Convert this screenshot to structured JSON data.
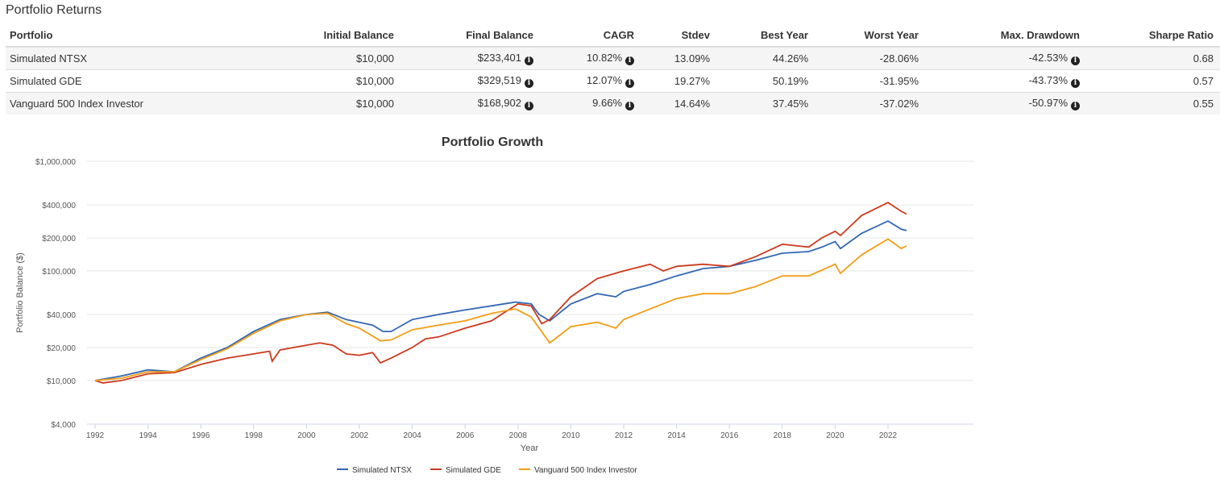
{
  "section_title": "Portfolio Returns",
  "table": {
    "headers": [
      "Portfolio",
      "Initial Balance",
      "Final Balance",
      "CAGR",
      "Stdev",
      "Best Year",
      "Worst Year",
      "Max. Drawdown",
      "Sharpe Ratio"
    ],
    "rows": [
      {
        "portfolio": "Simulated NTSX",
        "initial": "$10,000",
        "final": "$233,401",
        "cagr": "10.82%",
        "stdev": "13.09%",
        "best": "44.26%",
        "worst": "-28.06%",
        "maxdd": "-42.53%",
        "sharpe": "0.68"
      },
      {
        "portfolio": "Simulated GDE",
        "initial": "$10,000",
        "final": "$329,519",
        "cagr": "12.07%",
        "stdev": "19.27%",
        "best": "50.19%",
        "worst": "-31.95%",
        "maxdd": "-43.73%",
        "sharpe": "0.57"
      },
      {
        "portfolio": "Vanguard 500 Index Investor",
        "initial": "$10,000",
        "final": "$168,902",
        "cagr": "9.66%",
        "stdev": "14.64%",
        "best": "37.45%",
        "worst": "-37.02%",
        "maxdd": "-50.97%",
        "sharpe": "0.55"
      }
    ],
    "info_icon": "info-circle-icon"
  },
  "chart_data": {
    "type": "line",
    "title": "Portfolio Growth",
    "xlabel": "Year",
    "ylabel": "Portfolio Balance ($)",
    "yscale": "log",
    "ylim": [
      4000,
      1000000
    ],
    "xlim": [
      1991.7,
      2023.2
    ],
    "y_ticks": [
      {
        "v": 4000,
        "label": "$4,000"
      },
      {
        "v": 10000,
        "label": "$10,000"
      },
      {
        "v": 20000,
        "label": "$20,000"
      },
      {
        "v": 40000,
        "label": "$40,000"
      },
      {
        "v": 100000,
        "label": "$100,000"
      },
      {
        "v": 200000,
        "label": "$200,000"
      },
      {
        "v": 400000,
        "label": "$400,000"
      },
      {
        "v": 1000000,
        "label": "$1,000,000"
      }
    ],
    "x_ticks": [
      "1992",
      "1994",
      "1996",
      "1998",
      "2000",
      "2002",
      "2004",
      "2006",
      "2008",
      "2010",
      "2012",
      "2014",
      "2016",
      "2018",
      "2020",
      "2022"
    ],
    "grid": true,
    "legend": "bottom",
    "series": [
      {
        "name": "Simulated NTSX",
        "color": "#3366b3",
        "x": [
          1992,
          1993,
          1994,
          1995,
          1996,
          1997,
          1998,
          1999,
          2000,
          2000.8,
          2001.5,
          2002.5,
          2002.9,
          2003.2,
          2004,
          2005,
          2006,
          2007,
          2007.9,
          2008.5,
          2008.8,
          2009.2,
          2010,
          2011,
          2011.7,
          2012,
          2013,
          2014,
          2015,
          2016,
          2017,
          2018,
          2019,
          2019.5,
          2020,
          2020.2,
          2021,
          2022,
          2022.5,
          2022.7
        ],
        "y": [
          10000,
          11000,
          12500,
          12000,
          16000,
          20000,
          28000,
          36000,
          40000,
          42000,
          36000,
          32000,
          28000,
          28000,
          36000,
          40000,
          44000,
          48000,
          52000,
          50000,
          40000,
          35000,
          50000,
          62000,
          58000,
          65000,
          75000,
          90000,
          105000,
          110000,
          125000,
          145000,
          150000,
          165000,
          185000,
          160000,
          220000,
          285000,
          240000,
          233401
        ]
      },
      {
        "name": "Simulated GDE",
        "color": "#cc3a1d",
        "x": [
          1992,
          1992.3,
          1993,
          1994,
          1995,
          1996,
          1997,
          1998,
          1998.6,
          1998.7,
          1999,
          2000,
          2000.5,
          2001,
          2001.5,
          2002,
          2002.5,
          2002.8,
          2003.2,
          2004,
          2004.5,
          2005,
          2006,
          2007,
          2007.5,
          2008,
          2008.5,
          2008.9,
          2009.2,
          2010,
          2011,
          2012,
          2013,
          2013.5,
          2014,
          2015,
          2016,
          2017,
          2018,
          2019,
          2019.5,
          2020,
          2020.2,
          2021,
          2022,
          2022.5,
          2022.7
        ],
        "y": [
          10000,
          9500,
          10000,
          11500,
          11800,
          14000,
          16000,
          17500,
          18500,
          15000,
          19000,
          21000,
          22000,
          21000,
          17500,
          17000,
          18000,
          14500,
          16000,
          20000,
          24000,
          25000,
          30000,
          35000,
          42000,
          50000,
          48000,
          33000,
          36000,
          58000,
          85000,
          100000,
          115000,
          100000,
          110000,
          115000,
          110000,
          135000,
          175000,
          165000,
          200000,
          230000,
          210000,
          320000,
          420000,
          350000,
          329519
        ]
      },
      {
        "name": "Vanguard 500 Index Investor",
        "color": "#f29d16",
        "x": [
          1992,
          1993,
          1994,
          1995,
          1996,
          1997,
          1998,
          1999,
          2000,
          2000.8,
          2001.5,
          2002,
          2002.8,
          2003.2,
          2004,
          2005,
          2006,
          2007,
          2007.9,
          2008.5,
          2009.2,
          2010,
          2011,
          2011.7,
          2012,
          2013,
          2014,
          2015,
          2016,
          2017,
          2018,
          2019,
          2020,
          2020.2,
          2021,
          2022,
          2022.5,
          2022.7
        ],
        "y": [
          10000,
          10500,
          12000,
          12000,
          15500,
          19500,
          27000,
          35000,
          40000,
          41000,
          33000,
          30000,
          23000,
          23500,
          29000,
          32000,
          35000,
          41000,
          45000,
          38000,
          22000,
          31000,
          34000,
          30000,
          36000,
          45000,
          56000,
          62000,
          62000,
          72000,
          90000,
          90000,
          115000,
          95000,
          140000,
          195000,
          160000,
          168902
        ]
      }
    ]
  }
}
